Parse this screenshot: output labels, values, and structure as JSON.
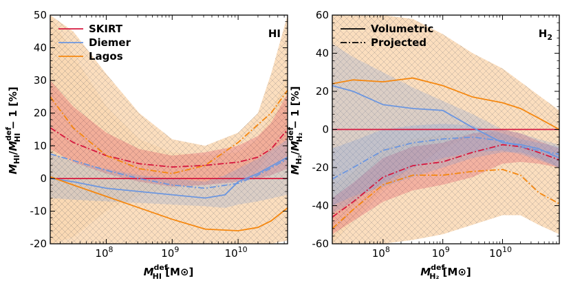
{
  "chart_data": [
    {
      "type": "line",
      "panel_tag": "HI",
      "x_scale": "log",
      "xlim_log10": [
        7.15,
        10.75
      ],
      "ylim": [
        -20,
        50
      ],
      "yticks": [
        -20,
        -10,
        0,
        10,
        20,
        30,
        40,
        50
      ],
      "xticks": [
        {
          "exp": 8,
          "label": "10",
          "sup": "8"
        },
        {
          "exp": 9,
          "label": "10",
          "sup": "9"
        },
        {
          "exp": 10,
          "label": "10",
          "sup": "10"
        }
      ],
      "xlabel": {
        "base": "M",
        "sup": "def",
        "sub": "HI",
        "unit": " [M⊙]"
      },
      "ylabel": {
        "num": "M",
        "num_sub": "HI",
        "den": "M",
        "den_sup": "def",
        "den_sub": "HI",
        "rest": " − 1 [%]"
      },
      "legend": {
        "position": "top-left",
        "entries": [
          {
            "label": "SKIRT",
            "color": "#d6163d"
          },
          {
            "label": "Diemer",
            "color": "#6b96e0"
          },
          {
            "label": "Lagos",
            "color": "#f5870f"
          }
        ]
      },
      "series": [
        {
          "name": "SKIRT",
          "style": "solid",
          "color": "#d6163d",
          "x": [
            7.15,
            10.75
          ],
          "y": [
            0,
            0
          ]
        },
        {
          "name": "SKIRT",
          "style": "dashdot",
          "color": "#d6163d",
          "x": [
            7.15,
            7.5,
            8.0,
            8.5,
            9.0,
            9.5,
            10.0,
            10.3,
            10.5,
            10.75
          ],
          "y": [
            15.5,
            11,
            7,
            4.5,
            3.5,
            4,
            5,
            6.5,
            9,
            15
          ],
          "lower": [
            9,
            5,
            1.5,
            -1,
            -2.5,
            -2,
            -1,
            0,
            1,
            3
          ],
          "upper": [
            30,
            22,
            14,
            9,
            7,
            8,
            10,
            13,
            17,
            26
          ]
        },
        {
          "name": "Diemer",
          "style": "solid",
          "color": "#6b96e0",
          "x": [
            7.15,
            7.5,
            8.0,
            8.5,
            9.0,
            9.5,
            9.8,
            10.0,
            10.3,
            10.75
          ],
          "y": [
            0,
            -1,
            -3,
            -4,
            -5,
            -6,
            -5,
            -1,
            1.5,
            6.5
          ],
          "lower": [
            -6,
            -6.5,
            -7,
            -7.5,
            -8,
            -8.5,
            -9,
            -8,
            -7,
            -5
          ],
          "upper": [
            8,
            5,
            3,
            1,
            0,
            -1,
            1,
            3,
            6,
            12
          ]
        },
        {
          "name": "Diemer",
          "style": "dashdot",
          "color": "#6b96e0",
          "x": [
            7.15,
            7.5,
            8.0,
            8.5,
            9.0,
            9.5,
            10.0,
            10.3,
            10.75
          ],
          "y": [
            7.5,
            5.5,
            2.5,
            0,
            -2,
            -3,
            -1.5,
            1,
            6
          ]
        },
        {
          "name": "Lagos",
          "style": "solid",
          "color": "#f5870f",
          "x": [
            7.15,
            7.5,
            8.0,
            8.5,
            9.0,
            9.5,
            10.0,
            10.3,
            10.5,
            10.75
          ],
          "y": [
            0.5,
            -2,
            -5.5,
            -9,
            -12.5,
            -15.5,
            -16,
            -15,
            -13,
            -9
          ],
          "lower": [
            -20,
            -20,
            -20,
            -20,
            -20,
            -20,
            -20,
            -20,
            -20,
            -19
          ],
          "upper": [
            50,
            38,
            22,
            12,
            8,
            7,
            8,
            12,
            20,
            32
          ]
        },
        {
          "name": "Lagos",
          "style": "dashdot",
          "color": "#f5870f",
          "x": [
            7.15,
            7.5,
            8.0,
            8.5,
            9.0,
            9.5,
            10.0,
            10.3,
            10.5,
            10.75
          ],
          "y": [
            25,
            15.5,
            7,
            3,
            1.5,
            4,
            11,
            16.5,
            20,
            27
          ],
          "lower": [
            -20,
            -18,
            -10,
            -5,
            -3,
            -2,
            0,
            3,
            8,
            12
          ],
          "upper": [
            50,
            45,
            32,
            20,
            12,
            10,
            14,
            20,
            32,
            50
          ]
        }
      ]
    },
    {
      "type": "line",
      "panel_tag": "H",
      "panel_tag_sub": "2",
      "x_scale": "log",
      "xlim_log10": [
        7.15,
        10.95
      ],
      "ylim": [
        -60,
        60
      ],
      "yticks": [
        -60,
        -40,
        -20,
        0,
        20,
        40,
        60
      ],
      "xticks": [
        {
          "exp": 8,
          "label": "10",
          "sup": "8"
        },
        {
          "exp": 9,
          "label": "10",
          "sup": "9"
        },
        {
          "exp": 10,
          "label": "10",
          "sup": "10"
        }
      ],
      "xlabel": {
        "base": "M",
        "sup": "def",
        "sub": "H₂",
        "unit": " [M⊙]"
      },
      "ylabel": {
        "num": "M",
        "num_sub": "H₂",
        "den": "M",
        "den_sup": "def",
        "den_sub": "H₂",
        "rest": " − 1 [%]"
      },
      "legend": {
        "position": "top-left",
        "entries": [
          {
            "label": "Volumetric",
            "style": "solid"
          },
          {
            "label": "Projected",
            "style": "dashdot"
          }
        ]
      },
      "series": [
        {
          "name": "SKIRT",
          "style": "solid",
          "color": "#d6163d",
          "x": [
            7.15,
            10.95
          ],
          "y": [
            0,
            0
          ]
        },
        {
          "name": "SKIRT",
          "style": "dashdot",
          "color": "#d6163d",
          "x": [
            7.15,
            7.5,
            8.0,
            8.5,
            9.0,
            9.5,
            10.0,
            10.3,
            10.6,
            10.95
          ],
          "y": [
            -46,
            -38,
            -25,
            -19,
            -17,
            -12,
            -8,
            -9,
            -12,
            -16
          ],
          "lower": [
            -55,
            -48,
            -38,
            -32,
            -29,
            -25,
            -18,
            -17,
            -18,
            -20
          ],
          "upper": [
            -36,
            -28,
            -15,
            -9,
            -7,
            -2,
            0,
            -2,
            -6,
            -10
          ]
        },
        {
          "name": "Diemer",
          "style": "solid",
          "color": "#6b96e0",
          "x": [
            7.15,
            7.5,
            8.0,
            8.5,
            9.0,
            9.5,
            10.0,
            10.3,
            10.6,
            10.95
          ],
          "y": [
            23,
            20,
            13,
            11,
            10,
            1,
            -7,
            -8,
            -10,
            -15
          ],
          "lower": [
            -40,
            -35,
            -30,
            -25,
            -20,
            -15,
            -12,
            -12,
            -15,
            -20
          ],
          "upper": [
            45,
            38,
            30,
            22,
            15,
            8,
            0,
            -2,
            -5,
            -8
          ]
        },
        {
          "name": "Diemer",
          "style": "dashdot",
          "color": "#6b96e0",
          "x": [
            7.15,
            7.5,
            8.0,
            8.5,
            9.0,
            9.5,
            10.0,
            10.3,
            10.6,
            10.95
          ],
          "y": [
            -26,
            -20,
            -11,
            -7,
            -5,
            -4,
            -6,
            -9,
            -11,
            -13
          ],
          "lower": [
            -44,
            -38,
            -28,
            -20,
            -15,
            -12,
            -11,
            -13,
            -16,
            -20
          ],
          "upper": [
            -10,
            -6,
            0,
            2,
            3,
            2,
            -2,
            -5,
            -7,
            -9
          ]
        },
        {
          "name": "Lagos",
          "style": "solid",
          "color": "#f5870f",
          "x": [
            7.15,
            7.5,
            8.0,
            8.5,
            9.0,
            9.5,
            10.0,
            10.3,
            10.6,
            10.95
          ],
          "y": [
            24,
            26,
            25,
            27,
            23,
            17,
            14,
            11,
            6,
            0
          ],
          "lower": [
            -60,
            -48,
            -32,
            -20,
            -10,
            -3,
            -5,
            -10,
            -15,
            -20
          ],
          "upper": [
            60,
            60,
            60,
            58,
            50,
            40,
            32,
            25,
            18,
            10
          ]
        },
        {
          "name": "Lagos",
          "style": "dashdot",
          "color": "#f5870f",
          "x": [
            7.15,
            7.5,
            8.0,
            8.5,
            9.0,
            9.5,
            10.0,
            10.3,
            10.6,
            10.95
          ],
          "y": [
            -52,
            -42,
            -29,
            -24,
            -24,
            -22,
            -21,
            -24,
            -33,
            -39
          ],
          "lower": [
            -60,
            -60,
            -60,
            -58,
            -55,
            -50,
            -45,
            -45,
            -50,
            -55
          ],
          "upper": [
            -30,
            -22,
            -10,
            -5,
            -3,
            -2,
            -2,
            -5,
            -12,
            -18
          ]
        }
      ]
    }
  ]
}
